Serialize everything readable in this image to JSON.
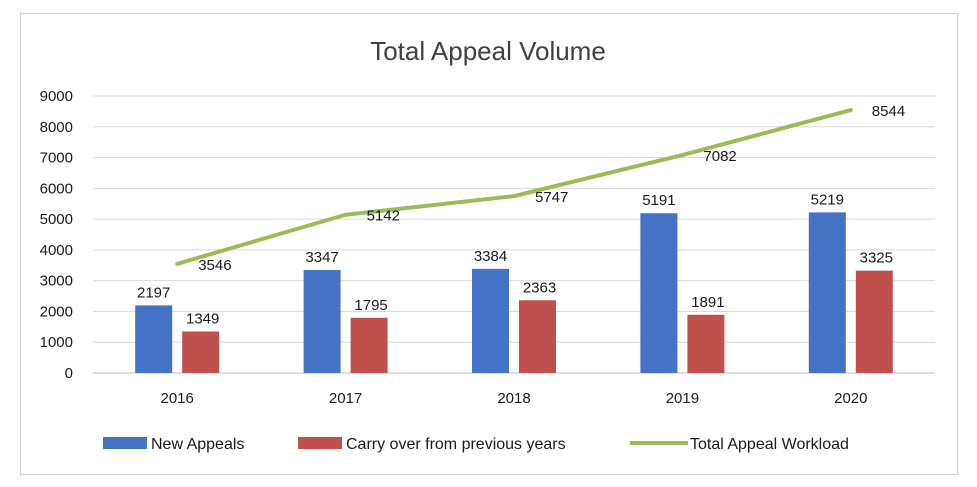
{
  "chart_data": {
    "type": "bar",
    "title": "Total Appeal Volume",
    "categories": [
      "2016",
      "2017",
      "2018",
      "2019",
      "2020"
    ],
    "y_ticks": [
      "0",
      "1000",
      "2000",
      "3000",
      "4000",
      "5000",
      "6000",
      "7000",
      "8000",
      "9000"
    ],
    "ylim": [
      0,
      9000
    ],
    "grid": true,
    "legend_position": "bottom",
    "series": [
      {
        "name": "New Appeals",
        "type": "bar",
        "color": "#4472C4",
        "values": [
          2197,
          3347,
          3384,
          5191,
          5219
        ],
        "labels": [
          "2197",
          "3347",
          "3384",
          "5191",
          "5219"
        ]
      },
      {
        "name": "Carry over from previous years",
        "type": "bar",
        "color": "#C0504D",
        "values": [
          1349,
          1795,
          2363,
          1891,
          3325
        ],
        "labels": [
          "1349",
          "1795",
          "2363",
          "1891",
          "3325"
        ]
      },
      {
        "name": "Total Appeal Workload",
        "type": "line",
        "color": "#9BBB59",
        "values": [
          3546,
          5142,
          5747,
          7082,
          8544
        ],
        "labels": [
          "3546",
          "5142",
          "5747",
          "7082",
          "8544"
        ]
      }
    ]
  }
}
